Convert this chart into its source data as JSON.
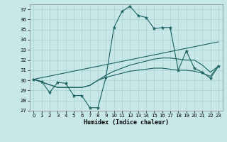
{
  "background_color": "#c8e8e8",
  "grid_color": "#a8d0d0",
  "line_color": "#1a6060",
  "xlabel": "Humidex (Indice chaleur)",
  "ylim": [
    27,
    37.5
  ],
  "xlim": [
    -0.5,
    23.5
  ],
  "yticks": [
    27,
    28,
    29,
    30,
    31,
    32,
    33,
    34,
    35,
    36,
    37
  ],
  "xticks": [
    0,
    1,
    2,
    3,
    4,
    5,
    6,
    7,
    8,
    9,
    10,
    11,
    12,
    13,
    14,
    15,
    16,
    17,
    18,
    19,
    20,
    21,
    22,
    23
  ],
  "series0_x": [
    0,
    1,
    2,
    3,
    4,
    5,
    6,
    7,
    8,
    9,
    10,
    11,
    12,
    13,
    14,
    15,
    16,
    17,
    18,
    19,
    20,
    21,
    22,
    23
  ],
  "series0_y": [
    30.1,
    29.9,
    28.8,
    29.8,
    29.7,
    28.5,
    28.5,
    27.3,
    27.3,
    30.3,
    35.2,
    36.8,
    37.3,
    36.4,
    36.2,
    35.1,
    35.2,
    35.2,
    31.0,
    32.9,
    31.2,
    30.8,
    30.2,
    31.4
  ],
  "series1_x": [
    0,
    3,
    4,
    5,
    6,
    7,
    8,
    9,
    10,
    11,
    12,
    13,
    14,
    15,
    16,
    17,
    18,
    19,
    20,
    21,
    22,
    23
  ],
  "series1_y": [
    30.1,
    29.3,
    29.3,
    29.3,
    29.3,
    29.5,
    30.0,
    30.5,
    30.9,
    31.2,
    31.5,
    31.7,
    31.9,
    32.1,
    32.2,
    32.2,
    32.1,
    32.0,
    32.0,
    31.5,
    30.8,
    31.4
  ],
  "series2_x": [
    0,
    3,
    4,
    5,
    6,
    7,
    8,
    9,
    10,
    11,
    12,
    13,
    14,
    15,
    16,
    17,
    18,
    19,
    20,
    21,
    22,
    23
  ],
  "series2_y": [
    30.1,
    29.3,
    29.3,
    29.3,
    29.3,
    29.5,
    30.0,
    30.3,
    30.5,
    30.7,
    30.9,
    31.0,
    31.1,
    31.2,
    31.2,
    31.1,
    31.0,
    31.0,
    30.9,
    30.7,
    30.4,
    31.4
  ],
  "series3_x": [
    0,
    23
  ],
  "series3_y": [
    30.1,
    33.8
  ]
}
